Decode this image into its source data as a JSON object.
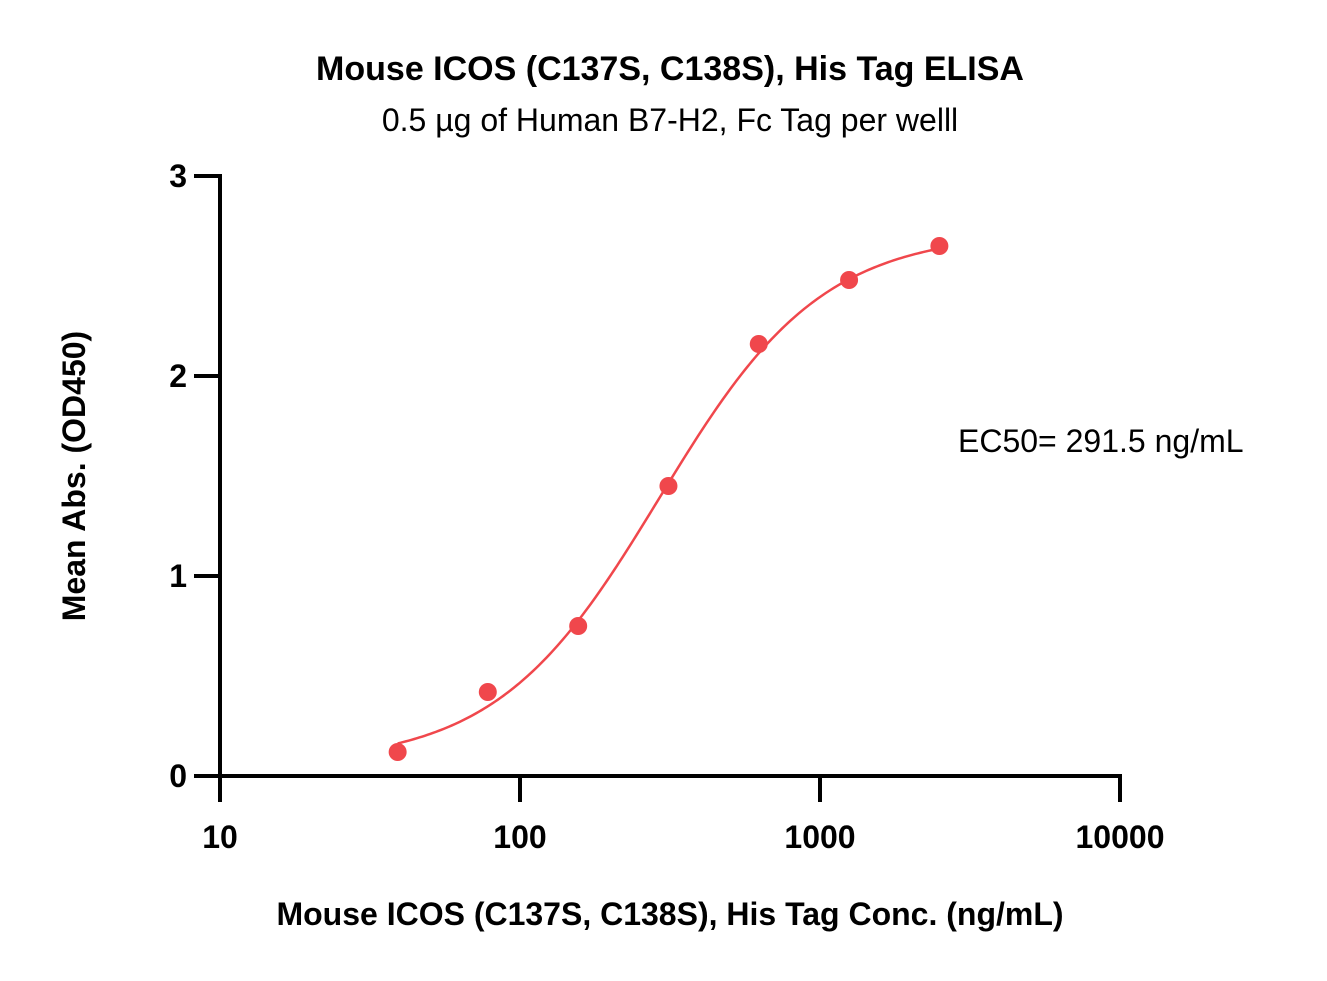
{
  "chart_data": {
    "type": "scatter",
    "title": "Mouse ICOS (C137S, C138S), His Tag ELISA",
    "subtitle": "0.5 µg of Human B7-H2, Fc Tag per welll",
    "xlabel": "Mouse ICOS (C137S, C138S), His Tag Conc. (ng/mL)",
    "ylabel": "Mean Abs. (OD450)",
    "xscale": "log",
    "xlim": [
      10,
      10000
    ],
    "ylim": [
      0,
      3
    ],
    "xticks": [
      10,
      100,
      1000,
      10000
    ],
    "xtick_labels": [
      "10",
      "100",
      "1000",
      "10000"
    ],
    "yticks": [
      0,
      1,
      2,
      3
    ],
    "ytick_labels": [
      "0",
      "1",
      "2",
      "3"
    ],
    "grid": false,
    "color": "#f0474c",
    "points": {
      "x": [
        39.1,
        78.1,
        156.3,
        312.5,
        625,
        1250,
        2500
      ],
      "y": [
        0.12,
        0.42,
        0.75,
        1.45,
        2.16,
        2.48,
        2.65
      ]
    },
    "fit": {
      "model": "4PL",
      "bottom": 0.06,
      "top": 2.72,
      "ec50": 291.5,
      "hill": 1.6,
      "x_range": [
        39.1,
        2500
      ]
    },
    "annotation": "EC50= 291.5 ng/mL"
  }
}
